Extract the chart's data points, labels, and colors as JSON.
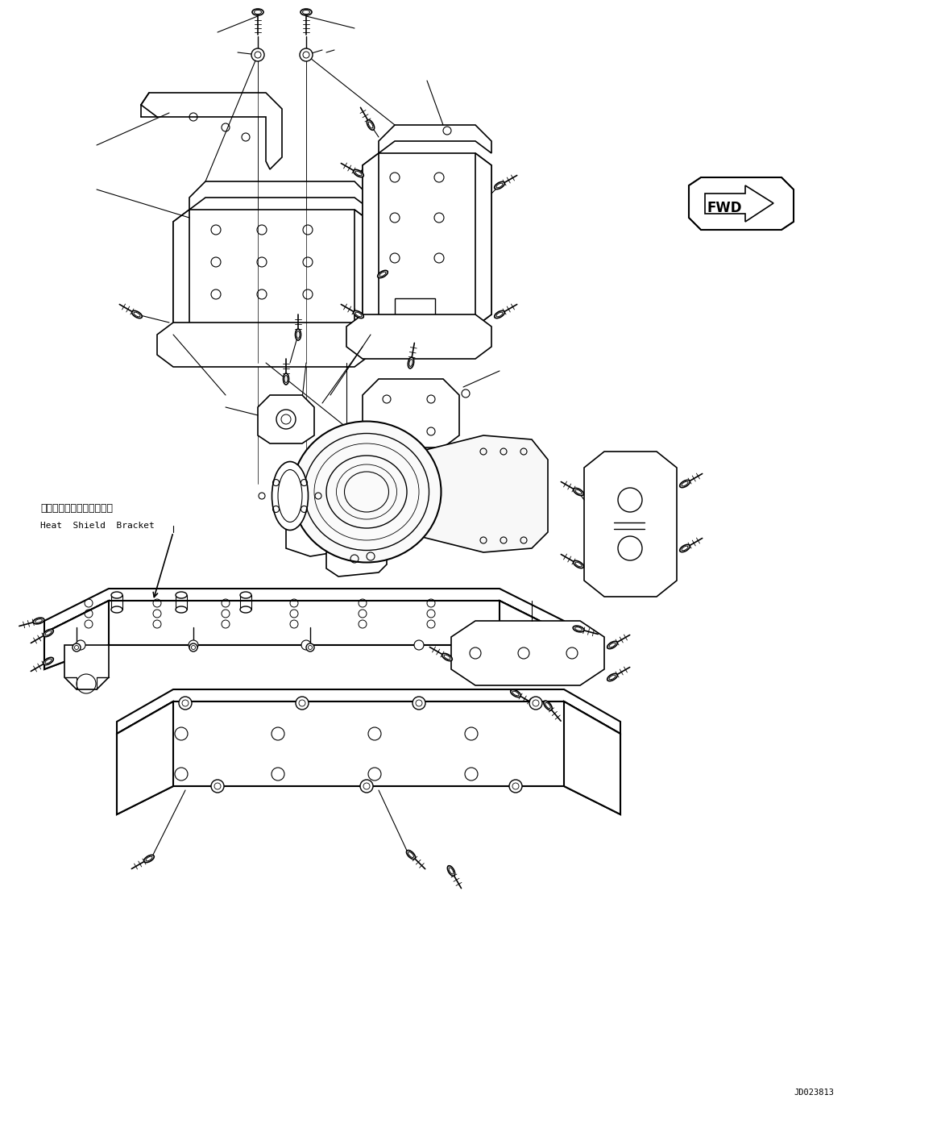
{
  "bg_color": "#ffffff",
  "line_color": "#000000",
  "fig_width": 11.63,
  "fig_height": 13.94,
  "dpi": 100,
  "label_heat_shield_jp": "ヒートシールドブラケット",
  "label_heat_shield_en": "Heat  Shield  Bracket",
  "label_fwd": "FWD",
  "label_part_no": "JD023813"
}
